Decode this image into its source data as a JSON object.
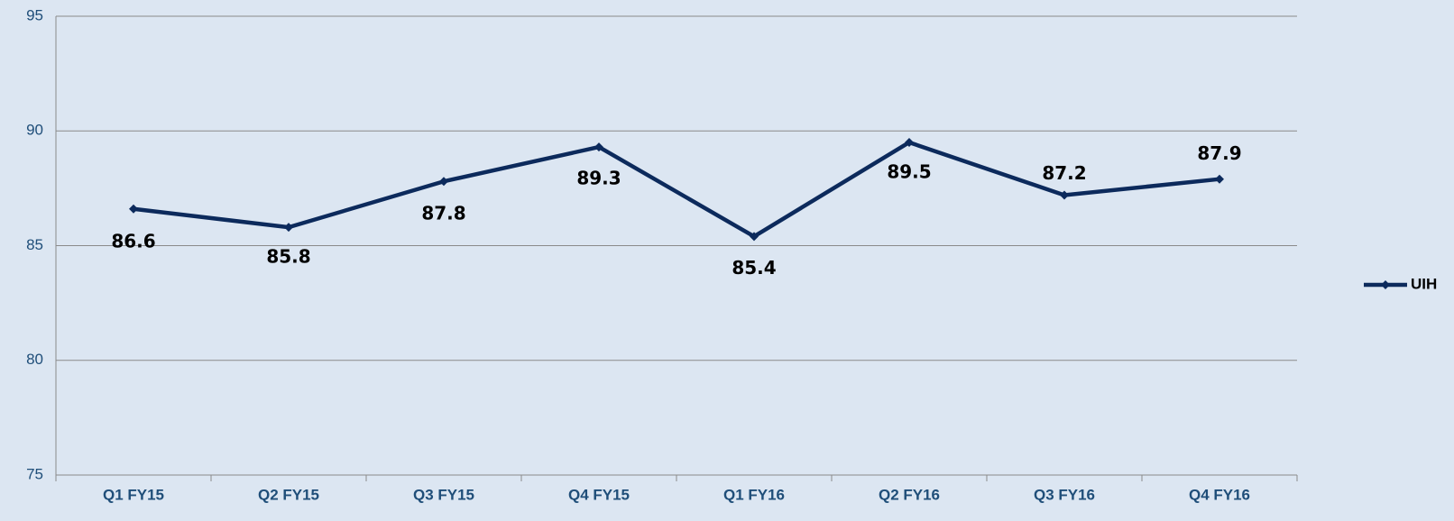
{
  "chart_data": {
    "type": "line",
    "categories": [
      "Q1 FY15",
      "Q2 FY15",
      "Q3 FY15",
      "Q4 FY15",
      "Q1 FY16",
      "Q2 FY16",
      "Q3 FY16",
      "Q4 FY16"
    ],
    "series": [
      {
        "name": "UIH",
        "color": "#0c2a5c",
        "values": [
          86.6,
          85.8,
          87.8,
          89.3,
          85.4,
          89.5,
          87.2,
          87.9
        ]
      }
    ],
    "ylim": [
      75,
      95
    ],
    "yticks": [
      75,
      80,
      85,
      90,
      95
    ],
    "grid": true,
    "legend": "right"
  }
}
